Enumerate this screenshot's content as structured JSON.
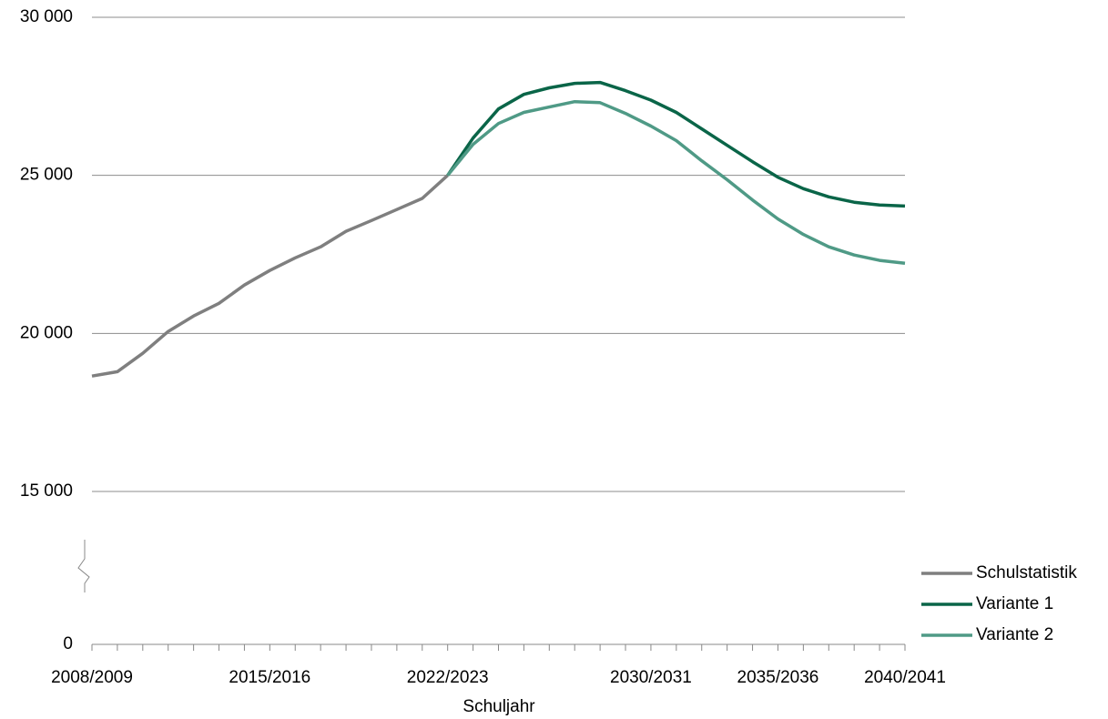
{
  "chart_data": {
    "type": "line",
    "x_label": "Schuljahr",
    "categories": [
      "2008/2009",
      null,
      null,
      null,
      null,
      null,
      null,
      "2015/2016",
      null,
      null,
      null,
      null,
      null,
      null,
      "2022/2023",
      null,
      null,
      null,
      null,
      null,
      null,
      null,
      "2030/2031",
      null,
      null,
      null,
      null,
      "2035/2036",
      null,
      null,
      null,
      null,
      "2040/2041"
    ],
    "series": [
      {
        "name": "Schulstatistik",
        "color": "#7f7f7f",
        "values": [
          18650,
          18790,
          19370,
          20060,
          20550,
          20950,
          21530,
          21990,
          22390,
          22740,
          23230,
          23570,
          23920,
          24270,
          25000,
          null,
          null,
          null,
          null,
          null,
          null,
          null,
          null,
          null,
          null,
          null,
          null,
          null,
          null,
          null,
          null,
          null,
          null
        ]
      },
      {
        "name": "Variante 1",
        "color": "#0a6548",
        "values": [
          null,
          null,
          null,
          null,
          null,
          null,
          null,
          null,
          null,
          null,
          null,
          null,
          null,
          null,
          25000,
          26180,
          27100,
          27560,
          27770,
          27910,
          27940,
          27680,
          27380,
          26990,
          26470,
          25950,
          25430,
          24940,
          24580,
          24320,
          24150,
          24060,
          24030
        ]
      },
      {
        "name": "Variante 2",
        "color": "#4f9a86",
        "values": [
          null,
          null,
          null,
          null,
          null,
          null,
          null,
          null,
          null,
          null,
          null,
          null,
          null,
          null,
          25000,
          25980,
          26640,
          26990,
          27160,
          27330,
          27300,
          26960,
          26560,
          26100,
          25460,
          24860,
          24220,
          23620,
          23130,
          22740,
          22480,
          22310,
          22220
        ]
      }
    ],
    "ylim": [
      0,
      30000
    ],
    "yticks": [
      0,
      {
        "value": 15000,
        "label": "15 000"
      },
      {
        "value": 20000,
        "label": "20 000"
      },
      {
        "value": 25000,
        "label": "25 000"
      },
      {
        "value": 30000,
        "label": "30 000"
      }
    ],
    "grid": true,
    "legend": "right"
  }
}
